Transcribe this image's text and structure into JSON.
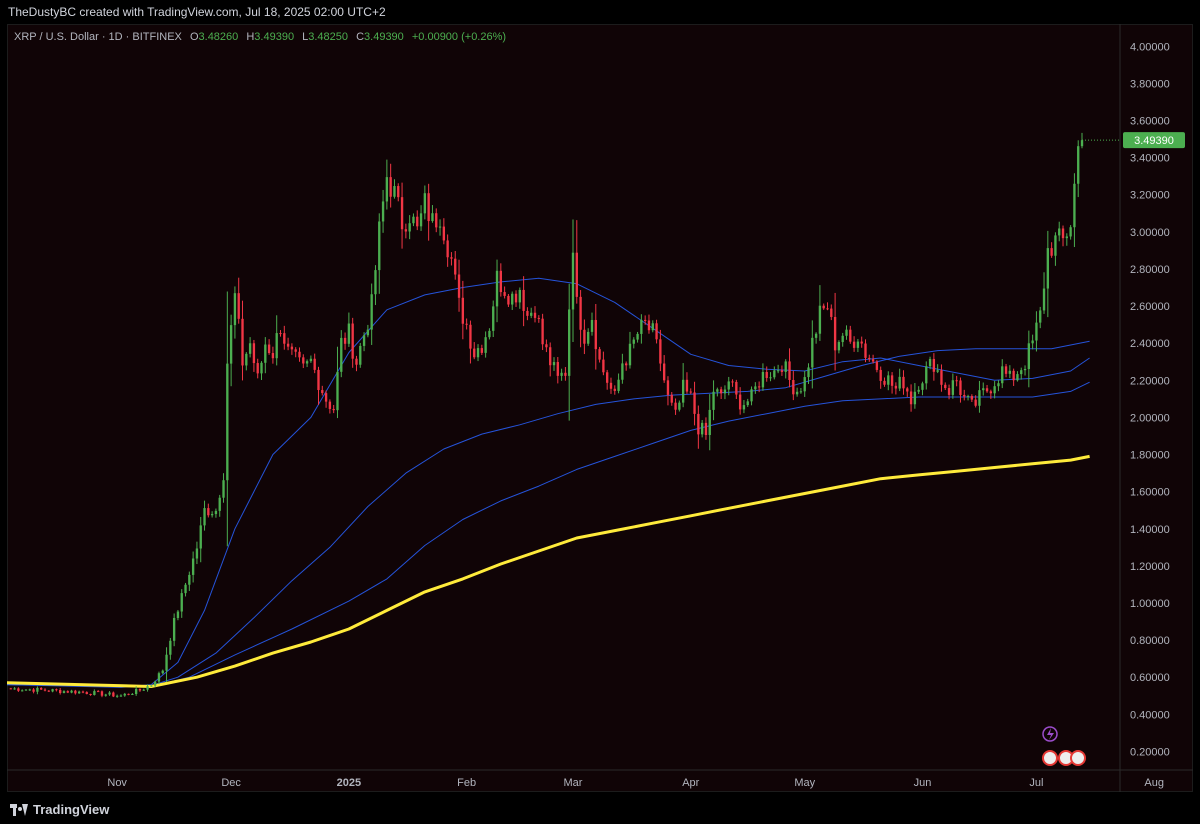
{
  "header": {
    "text": "TheDustyBC created with TradingView.com, Jul 18, 2025 02:00 UTC+2"
  },
  "legend": {
    "symbol": "XRP / U.S. Dollar · 1D · BITFINEX",
    "o_label": "O",
    "o_value": "3.48260",
    "h_label": "H",
    "h_value": "3.49390",
    "l_label": "L",
    "l_value": "3.48250",
    "c_label": "C",
    "c_value": "3.49390",
    "change": "+0.00900 (+0.26%)"
  },
  "footer": {
    "brand": "TradingView"
  },
  "colors": {
    "up": "#4caf50",
    "down": "#f23645",
    "ma_blue": "#2962ff",
    "ma_yellow": "#ffeb3b",
    "background": "#100406"
  },
  "chart_data": {
    "type": "candlestick",
    "ylim": [
      0.1,
      4.12
    ],
    "x_range_days": [
      0,
      293
    ],
    "y_ticks": [
      "4.00000",
      "3.80000",
      "3.60000",
      "3.40000",
      "3.20000",
      "3.00000",
      "2.80000",
      "2.60000",
      "2.40000",
      "2.20000",
      "2.00000",
      "1.80000",
      "1.60000",
      "1.40000",
      "1.20000",
      "1.00000",
      "0.80000",
      "0.60000",
      "0.40000",
      "0.20000"
    ],
    "x_ticks": [
      {
        "label": "Nov",
        "day": 29,
        "bold": false
      },
      {
        "label": "Dec",
        "day": 59,
        "bold": false
      },
      {
        "label": "2025",
        "day": 90,
        "bold": true
      },
      {
        "label": "Feb",
        "day": 121,
        "bold": false
      },
      {
        "label": "Mar",
        "day": 149,
        "bold": false
      },
      {
        "label": "Apr",
        "day": 180,
        "bold": false
      },
      {
        "label": "May",
        "day": 210,
        "bold": false
      },
      {
        "label": "Jun",
        "day": 241,
        "bold": false
      },
      {
        "label": "Jul",
        "day": 271,
        "bold": false
      },
      {
        "label": "Aug",
        "day": 302,
        "bold": false
      }
    ],
    "last_price": 3.4939,
    "last_price_label": "3.49390",
    "close_anchors": [
      [
        0,
        0.54
      ],
      [
        20,
        0.52
      ],
      [
        30,
        0.5
      ],
      [
        35,
        0.53
      ],
      [
        38,
        0.56
      ],
      [
        41,
        0.64
      ],
      [
        44,
        0.9
      ],
      [
        47,
        1.1
      ],
      [
        50,
        1.3
      ],
      [
        52,
        1.5
      ],
      [
        55,
        1.5
      ],
      [
        57,
        1.7
      ],
      [
        58,
        2.3
      ],
      [
        60,
        2.65
      ],
      [
        62,
        2.3
      ],
      [
        64,
        2.4
      ],
      [
        66,
        2.2
      ],
      [
        68,
        2.4
      ],
      [
        70,
        2.35
      ],
      [
        72,
        2.5
      ],
      [
        74,
        2.35
      ],
      [
        76,
        2.3
      ],
      [
        78,
        2.25
      ],
      [
        80,
        2.3
      ],
      [
        82,
        2.2
      ],
      [
        84,
        2.1
      ],
      [
        86,
        2.05
      ],
      [
        88,
        2.4
      ],
      [
        90,
        2.45
      ],
      [
        92,
        2.3
      ],
      [
        94,
        2.45
      ],
      [
        96,
        2.6
      ],
      [
        98,
        3.0
      ],
      [
        100,
        3.3
      ],
      [
        102,
        3.2
      ],
      [
        104,
        3.05
      ],
      [
        106,
        3.1
      ],
      [
        108,
        3.0
      ],
      [
        110,
        3.15
      ],
      [
        112,
        3.05
      ],
      [
        114,
        3.1
      ],
      [
        117,
        2.85
      ],
      [
        119,
        2.6
      ],
      [
        121,
        2.5
      ],
      [
        123,
        2.35
      ],
      [
        125,
        2.4
      ],
      [
        127,
        2.5
      ],
      [
        129,
        2.75
      ],
      [
        131,
        2.7
      ],
      [
        133,
        2.65
      ],
      [
        135,
        2.7
      ],
      [
        137,
        2.55
      ],
      [
        139,
        2.6
      ],
      [
        141,
        2.4
      ],
      [
        143,
        2.3
      ],
      [
        145,
        2.2
      ],
      [
        147,
        2.25
      ],
      [
        149,
        2.95
      ],
      [
        150,
        2.6
      ],
      [
        152,
        2.45
      ],
      [
        154,
        2.55
      ],
      [
        156,
        2.3
      ],
      [
        158,
        2.2
      ],
      [
        160,
        2.1
      ],
      [
        162,
        2.3
      ],
      [
        164,
        2.35
      ],
      [
        166,
        2.45
      ],
      [
        168,
        2.5
      ],
      [
        170,
        2.45
      ],
      [
        172,
        2.3
      ],
      [
        174,
        2.1
      ],
      [
        176,
        2.0
      ],
      [
        178,
        2.15
      ],
      [
        180,
        2.1
      ],
      [
        182,
        1.95
      ],
      [
        184,
        1.9
      ],
      [
        186,
        2.15
      ],
      [
        188,
        2.1
      ],
      [
        190,
        2.2
      ],
      [
        192,
        2.1
      ],
      [
        194,
        2.08
      ],
      [
        196,
        2.1
      ],
      [
        198,
        2.2
      ],
      [
        200,
        2.25
      ],
      [
        202,
        2.25
      ],
      [
        204,
        2.3
      ],
      [
        206,
        2.2
      ],
      [
        208,
        2.15
      ],
      [
        210,
        2.2
      ],
      [
        212,
        2.4
      ],
      [
        214,
        2.55
      ],
      [
        216,
        2.6
      ],
      [
        218,
        2.4
      ],
      [
        220,
        2.45
      ],
      [
        222,
        2.4
      ],
      [
        224,
        2.45
      ],
      [
        226,
        2.35
      ],
      [
        228,
        2.3
      ],
      [
        230,
        2.25
      ],
      [
        232,
        2.2
      ],
      [
        234,
        2.15
      ],
      [
        236,
        2.2
      ],
      [
        238,
        2.1
      ],
      [
        240,
        2.2
      ],
      [
        242,
        2.25
      ],
      [
        244,
        2.3
      ],
      [
        246,
        2.2
      ],
      [
        248,
        2.15
      ],
      [
        250,
        2.2
      ],
      [
        252,
        2.1
      ],
      [
        254,
        2.05
      ],
      [
        256,
        2.1
      ],
      [
        258,
        2.15
      ],
      [
        260,
        2.2
      ],
      [
        262,
        2.25
      ],
      [
        264,
        2.2
      ],
      [
        266,
        2.25
      ],
      [
        268,
        2.3
      ],
      [
        270,
        2.4
      ],
      [
        272,
        2.55
      ],
      [
        274,
        2.9
      ],
      [
        276,
        2.95
      ],
      [
        278,
        2.95
      ],
      [
        280,
        3.05
      ],
      [
        282,
        3.45
      ],
      [
        283,
        3.4939
      ]
    ],
    "moving_averages": [
      {
        "color": "blue",
        "width": 1,
        "points": [
          [
            0,
            0.56
          ],
          [
            30,
            0.545
          ],
          [
            38,
            0.56
          ],
          [
            45,
            0.68
          ],
          [
            52,
            0.96
          ],
          [
            60,
            1.4
          ],
          [
            70,
            1.8
          ],
          [
            80,
            2.0
          ],
          [
            90,
            2.35
          ],
          [
            100,
            2.58
          ],
          [
            110,
            2.66
          ],
          [
            120,
            2.7
          ],
          [
            130,
            2.73
          ],
          [
            140,
            2.75
          ],
          [
            150,
            2.72
          ],
          [
            160,
            2.62
          ],
          [
            170,
            2.48
          ],
          [
            180,
            2.34
          ],
          [
            190,
            2.28
          ],
          [
            200,
            2.26
          ],
          [
            210,
            2.25
          ],
          [
            220,
            2.3
          ],
          [
            230,
            2.32
          ],
          [
            240,
            2.28
          ],
          [
            250,
            2.24
          ],
          [
            260,
            2.2
          ],
          [
            270,
            2.21
          ],
          [
            280,
            2.25
          ],
          [
            285,
            2.32
          ]
        ]
      },
      {
        "color": "blue",
        "width": 1,
        "points": [
          [
            0,
            0.56
          ],
          [
            38,
            0.555
          ],
          [
            45,
            0.6
          ],
          [
            55,
            0.73
          ],
          [
            65,
            0.92
          ],
          [
            75,
            1.12
          ],
          [
            85,
            1.3
          ],
          [
            95,
            1.52
          ],
          [
            105,
            1.7
          ],
          [
            115,
            1.83
          ],
          [
            125,
            1.91
          ],
          [
            135,
            1.96
          ],
          [
            145,
            2.02
          ],
          [
            155,
            2.07
          ],
          [
            165,
            2.1
          ],
          [
            175,
            2.12
          ],
          [
            185,
            2.13
          ],
          [
            195,
            2.14
          ],
          [
            205,
            2.16
          ],
          [
            215,
            2.22
          ],
          [
            225,
            2.28
          ],
          [
            235,
            2.33
          ],
          [
            245,
            2.36
          ],
          [
            255,
            2.37
          ],
          [
            265,
            2.37
          ],
          [
            275,
            2.37
          ],
          [
            285,
            2.41
          ]
        ]
      },
      {
        "color": "blue",
        "width": 1,
        "points": [
          [
            0,
            0.56
          ],
          [
            38,
            0.55
          ],
          [
            48,
            0.6
          ],
          [
            60,
            0.72
          ],
          [
            75,
            0.86
          ],
          [
            90,
            1.01
          ],
          [
            100,
            1.13
          ],
          [
            110,
            1.31
          ],
          [
            120,
            1.45
          ],
          [
            130,
            1.55
          ],
          [
            140,
            1.63
          ],
          [
            150,
            1.72
          ],
          [
            160,
            1.79
          ],
          [
            170,
            1.86
          ],
          [
            180,
            1.93
          ],
          [
            190,
            1.98
          ],
          [
            200,
            2.02
          ],
          [
            210,
            2.06
          ],
          [
            220,
            2.09
          ],
          [
            230,
            2.1
          ],
          [
            240,
            2.11
          ],
          [
            250,
            2.11
          ],
          [
            260,
            2.11
          ],
          [
            270,
            2.11
          ],
          [
            280,
            2.14
          ],
          [
            285,
            2.19
          ]
        ]
      },
      {
        "color": "yellow",
        "width": 3,
        "points": [
          [
            0,
            0.57
          ],
          [
            38,
            0.55
          ],
          [
            50,
            0.6
          ],
          [
            60,
            0.66
          ],
          [
            70,
            0.73
          ],
          [
            80,
            0.79
          ],
          [
            90,
            0.86
          ],
          [
            100,
            0.96
          ],
          [
            110,
            1.06
          ],
          [
            120,
            1.13
          ],
          [
            130,
            1.21
          ],
          [
            140,
            1.28
          ],
          [
            150,
            1.35
          ],
          [
            160,
            1.39
          ],
          [
            170,
            1.43
          ],
          [
            180,
            1.47
          ],
          [
            190,
            1.51
          ],
          [
            200,
            1.55
          ],
          [
            210,
            1.59
          ],
          [
            220,
            1.63
          ],
          [
            230,
            1.67
          ],
          [
            240,
            1.69
          ],
          [
            250,
            1.71
          ],
          [
            260,
            1.73
          ],
          [
            270,
            1.75
          ],
          [
            280,
            1.77
          ],
          [
            285,
            1.79
          ]
        ]
      }
    ]
  }
}
